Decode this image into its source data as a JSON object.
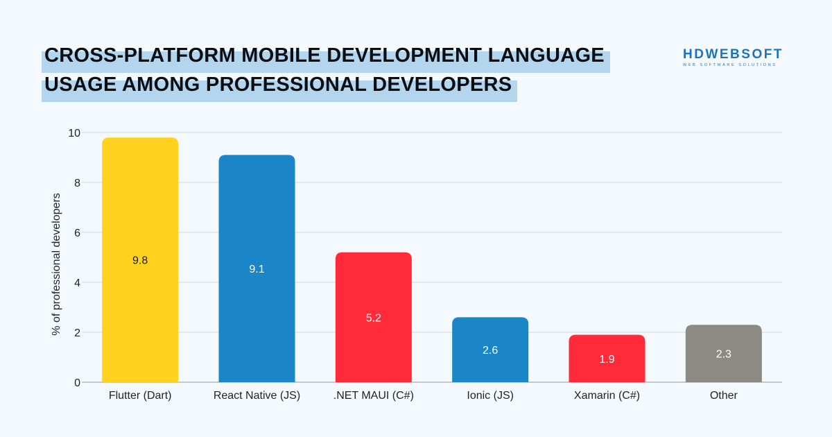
{
  "title_lines": [
    "CROSS-PLATFORM MOBILE DEVELOPMENT LANGUAGE",
    "USAGE AMONG PROFESSIONAL DEVELOPERS"
  ],
  "logo": {
    "main": "HDWEBSOFT",
    "sub": "WEB SOFTWARE SOLUTIONS"
  },
  "colors": {
    "highlight": "#b3d6ee",
    "yellow": "#ffd21f",
    "blue": "#1a86c8",
    "red": "#ff2a3a",
    "gray": "#8c8a85"
  },
  "chart_data": {
    "type": "bar",
    "title": "CROSS-PLATFORM MOBILE DEVELOPMENT LANGUAGE USAGE AMONG PROFESSIONAL DEVELOPERS",
    "xlabel": "",
    "ylabel": "% of professional developers",
    "ylim": [
      0,
      10
    ],
    "yticks": [
      0,
      2,
      4,
      6,
      8,
      10
    ],
    "grid": true,
    "categories": [
      "Flutter (Dart)",
      "React Native (JS)",
      ".NET MAUI (C#)",
      "Ionic (JS)",
      "Xamarin (C#)",
      "Other"
    ],
    "values": [
      9.8,
      9.1,
      5.2,
      2.6,
      1.9,
      2.3
    ],
    "bar_colors": [
      "#ffd21f",
      "#1a86c8",
      "#ff2a3a",
      "#1a86c8",
      "#ff2a3a",
      "#8c8a85"
    ],
    "label_colors": [
      "#1a1a1a",
      "#ffffff",
      "#ffffff",
      "#ffffff",
      "#ffffff",
      "#ffffff"
    ]
  }
}
